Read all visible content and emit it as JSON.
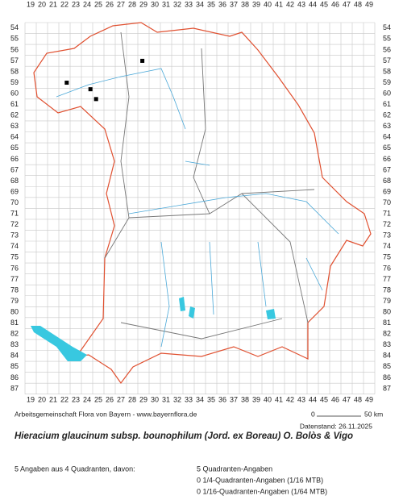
{
  "map": {
    "col_labels": [
      19,
      20,
      21,
      22,
      23,
      24,
      25,
      26,
      27,
      28,
      29,
      30,
      31,
      32,
      33,
      34,
      35,
      36,
      37,
      38,
      39,
      40,
      41,
      42,
      43,
      44,
      45,
      46,
      47,
      48,
      49
    ],
    "row_labels": [
      54,
      55,
      56,
      57,
      58,
      59,
      60,
      61,
      62,
      63,
      64,
      65,
      66,
      67,
      68,
      69,
      70,
      71,
      72,
      73,
      74,
      75,
      76,
      77,
      78,
      79,
      80,
      81,
      82,
      83,
      84,
      85,
      86,
      87
    ],
    "occurrences": [
      {
        "col": 22.2,
        "row": 59
      },
      {
        "col": 24.3,
        "row": 59.6
      },
      {
        "col": 24.8,
        "row": 60.5
      },
      {
        "col": 28.9,
        "row": 57
      }
    ]
  },
  "footer": {
    "credit": "Arbeitsgemeinschaft Flora von Bayern - www.bayernflora.de",
    "scale_start": "0",
    "scale_end": "50 km",
    "date": "Datenstand: 26.11.2025"
  },
  "title": "Hieracium glaucinum subsp. bounophilum (Jord. ex Boreau) O. Bolòs & Vigo",
  "stats": {
    "summary": "5 Angaben aus 4 Quadranten, davon:",
    "lines": [
      "5 Quadranten-Angaben",
      "0 1/4-Quadranten-Angaben (1/16 MTB)",
      "0 1/16-Quadranten-Angaben (1/64 MTB)"
    ]
  }
}
